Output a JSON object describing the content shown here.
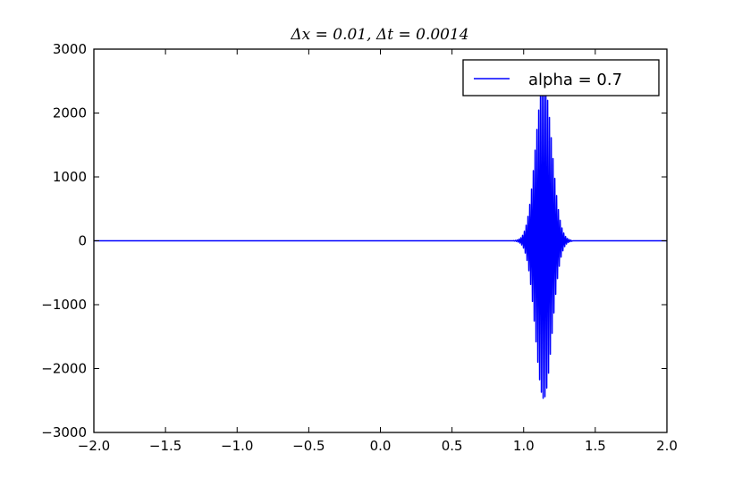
{
  "chart_data": {
    "type": "line",
    "title": "Δx = 0.01, Δt = 0.0014",
    "xlabel": "",
    "ylabel": "",
    "xlim": [
      -2.0,
      2.0
    ],
    "ylim": [
      -3000,
      3000
    ],
    "x_ticks": [
      -2.0,
      -1.5,
      -1.0,
      -0.5,
      0.0,
      0.5,
      1.0,
      1.5,
      2.0
    ],
    "x_tick_labels": [
      "−2.0",
      "−1.5",
      "−1.0",
      "−0.5",
      "0.0",
      "0.5",
      "1.0",
      "1.5",
      "2.0"
    ],
    "y_ticks": [
      -3000,
      -2000,
      -1000,
      0,
      1000,
      2000,
      3000
    ],
    "y_tick_labels": [
      "−3000",
      "−2000",
      "−1000",
      "0",
      "1000",
      "2000",
      "3000"
    ],
    "grid": false,
    "legend_position": "top-right",
    "series": [
      {
        "name": "alpha = 0.7",
        "color": "#0000ff",
        "baseline": 0,
        "packet_center": 1.14,
        "peak_amplitude": 2470,
        "packet_extent": [
          0.95,
          1.32
        ],
        "oscillation_spacing": 0.0125
      }
    ]
  }
}
